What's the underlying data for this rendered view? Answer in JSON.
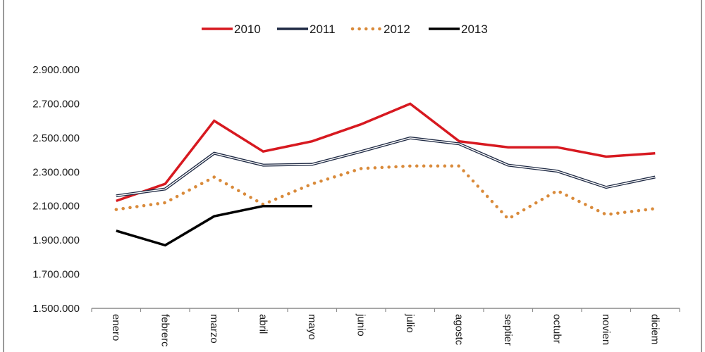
{
  "chart_data": {
    "type": "line",
    "title": "",
    "xlabel": "",
    "ylabel": "",
    "categories": [
      "enero",
      "febrero",
      "marzo",
      "abril",
      "mayo",
      "junio",
      "julio",
      "agosto",
      "septiembre",
      "octubre",
      "noviembre",
      "diciembre"
    ],
    "category_labels_visible": [
      "enero",
      "febrerc",
      "marzo",
      "abril",
      "mayo",
      "junio",
      "julio",
      "agostc",
      "septier",
      "octubr",
      "novien",
      "diciem"
    ],
    "ylim": [
      1500000,
      2900000
    ],
    "yticks": [
      1500000,
      1700000,
      1900000,
      2100000,
      2300000,
      2500000,
      2700000,
      2900000
    ],
    "ytick_labels": [
      "1.500.000",
      "1.700.000",
      "1.900.000",
      "2.100.000",
      "2.300.000",
      "2.500.000",
      "2.700.000",
      "2.900.000"
    ],
    "grid": false,
    "legend_position": "top-center",
    "series": [
      {
        "name": "2010",
        "color": "#d71920",
        "style": "solid",
        "values": [
          2130000,
          2230000,
          2600000,
          2420000,
          2480000,
          2580000,
          2700000,
          2480000,
          2445000,
          2445000,
          2390000,
          2410000
        ]
      },
      {
        "name": "2011",
        "color": "#1f2a44",
        "style": "double",
        "values": [
          2160000,
          2200000,
          2410000,
          2340000,
          2345000,
          2420000,
          2500000,
          2465000,
          2340000,
          2305000,
          2210000,
          2270000
        ]
      },
      {
        "name": "2012",
        "color": "#d98a3a",
        "style": "dotted",
        "values": [
          2080000,
          2120000,
          2270000,
          2110000,
          2230000,
          2320000,
          2335000,
          2335000,
          2025000,
          2190000,
          2050000,
          2085000
        ]
      },
      {
        "name": "2013",
        "color": "#000000",
        "style": "solid",
        "values": [
          1955000,
          1870000,
          2040000,
          2100000,
          2100000,
          null,
          null,
          null,
          null,
          null,
          null,
          null
        ]
      }
    ]
  }
}
